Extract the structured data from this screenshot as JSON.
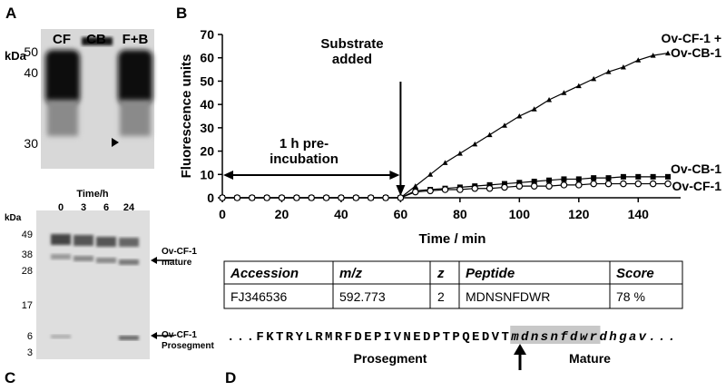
{
  "panel_labels": [
    "A",
    "B",
    "C",
    "D"
  ],
  "gel_a": {
    "unit": "kDa",
    "lanes": [
      "CF",
      "CB",
      "F+B"
    ],
    "markers": [
      "50",
      "40",
      "30"
    ]
  },
  "gel_c": {
    "unit": "kDa",
    "time_label": "Time/h",
    "lanes": [
      "0",
      "3",
      "6",
      "24"
    ],
    "markers": [
      "49",
      "38",
      "28",
      "17",
      "6",
      "3"
    ],
    "annotations": [
      "Ov-CF-1 mature",
      "Ov-CF-1 Prosegment"
    ]
  },
  "chart_data": {
    "type": "line",
    "x_label": "Time / min",
    "y_label": "Fluorescence units",
    "annotations": [
      "Substrate added",
      "1 h pre-incubation"
    ],
    "x": [
      0,
      5,
      10,
      15,
      20,
      25,
      30,
      35,
      40,
      45,
      50,
      55,
      60,
      65,
      70,
      75,
      80,
      85,
      90,
      95,
      100,
      105,
      110,
      115,
      120,
      125,
      130,
      135,
      140,
      145,
      150
    ],
    "series": [
      {
        "name": "Ov-CF-1 + Ov-CB-1",
        "color": "#000000",
        "marker": "triangle",
        "values": [
          0,
          0,
          0,
          0,
          0,
          0,
          0,
          0,
          0,
          0,
          0,
          0,
          0,
          5,
          10,
          15,
          19,
          23,
          27,
          31,
          35,
          38,
          42,
          45,
          48,
          51,
          54,
          56,
          59,
          61,
          62
        ]
      },
      {
        "name": "Ov-CB-1",
        "color": "#000000",
        "marker": "square",
        "values": [
          0,
          0,
          0,
          0,
          0,
          0,
          0,
          0,
          0,
          0,
          0,
          0,
          0,
          3,
          3.5,
          4,
          4.5,
          5,
          5.5,
          6,
          6.5,
          7,
          7.5,
          8,
          8,
          8.5,
          8.5,
          9,
          9,
          9,
          9
        ]
      },
      {
        "name": "Ov-CF-1",
        "color": "#000000",
        "marker": "circle-open",
        "values": [
          0,
          0,
          0,
          0,
          0,
          0,
          0,
          0,
          0,
          0,
          0,
          0,
          0,
          2.5,
          3,
          3.5,
          3.5,
          4,
          4,
          4.5,
          5,
          5,
          5,
          5.5,
          5.5,
          6,
          6,
          6,
          6,
          6,
          6
        ]
      }
    ],
    "xlim": [
      0,
      150
    ],
    "xticks": [
      0,
      20,
      40,
      60,
      80,
      100,
      120,
      140
    ],
    "ylim": [
      0,
      70
    ],
    "yticks": [
      0,
      10,
      20,
      30,
      40,
      50,
      60,
      70
    ]
  },
  "table": {
    "header": [
      "Accession",
      "m/z",
      "z",
      "Peptide",
      "Score"
    ],
    "rows": [
      [
        "FJ346536",
        "592.773",
        "2",
        "MDNSNFDWR",
        "78 %"
      ]
    ]
  },
  "sequence": {
    "prosegment": "...FKTRYLRMRFDEPIVNEDPTPQEDVT",
    "peptide": "mdnsnfdwr",
    "rest": "dhgav...",
    "labels": [
      "Prosegment",
      "Mature"
    ]
  }
}
